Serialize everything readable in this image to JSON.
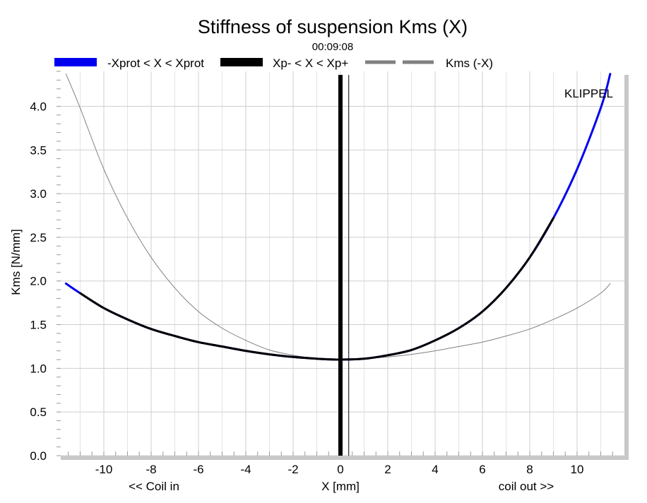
{
  "chart_data": {
    "type": "line",
    "title": "Stiffness of suspension Kms (X)",
    "subtitle": "00:09:08",
    "brand": "KLIPPEL",
    "xlabel": "X [mm]",
    "xlabel_left": "<< Coil in",
    "xlabel_right": "coil out >>",
    "ylabel": "Kms [N/mm]",
    "xlim": [
      -12,
      12
    ],
    "ylim": [
      0,
      4.4
    ],
    "xticks": [
      "-10",
      "-8",
      "-6",
      "-4",
      "-2",
      "0",
      "2",
      "4",
      "6",
      "8",
      "10"
    ],
    "xtick_values": [
      -10,
      -8,
      -6,
      -4,
      -2,
      0,
      2,
      4,
      6,
      8,
      10
    ],
    "yticks": [
      "0.0",
      "0.5",
      "1.0",
      "1.5",
      "2.0",
      "2.5",
      "3.0",
      "3.5",
      "4.0"
    ],
    "ytick_values": [
      0,
      0.5,
      1.0,
      1.5,
      2.0,
      2.5,
      3.0,
      3.5,
      4.0
    ],
    "grid": true,
    "legend_position": "top",
    "vertical_markers": [
      {
        "x": 0,
        "color": "#000000",
        "role": "thick"
      },
      {
        "x": 0.35,
        "color": "#000000",
        "role": "thin"
      }
    ],
    "series": [
      {
        "name": "-Xprot < X < Xprot",
        "color": "#0000ee",
        "x": [
          -11.6,
          -11,
          -10,
          -9,
          -8,
          -7,
          -6,
          -5,
          -4,
          -3,
          -2,
          -1,
          0,
          1,
          2,
          3,
          4,
          5,
          6,
          7,
          8,
          9,
          10,
          11,
          11.4
        ],
        "y": [
          1.97,
          1.86,
          1.69,
          1.56,
          1.45,
          1.37,
          1.3,
          1.25,
          1.2,
          1.16,
          1.13,
          1.11,
          1.1,
          1.11,
          1.15,
          1.21,
          1.32,
          1.46,
          1.65,
          1.92,
          2.27,
          2.72,
          3.28,
          3.98,
          4.37
        ]
      },
      {
        "name": "Xp- < X < Xp+",
        "color": "#000000",
        "x": [
          -11,
          -10,
          -9,
          -8,
          -7,
          -6,
          -5,
          -4,
          -3,
          -2,
          -1,
          0,
          1,
          2,
          3,
          4,
          5,
          6,
          7,
          8,
          9
        ],
        "y": [
          1.86,
          1.69,
          1.56,
          1.45,
          1.37,
          1.3,
          1.25,
          1.2,
          1.16,
          1.13,
          1.11,
          1.1,
          1.11,
          1.15,
          1.21,
          1.32,
          1.46,
          1.65,
          1.92,
          2.27,
          2.72
        ]
      },
      {
        "name": "Kms (-X)",
        "color": "#808080",
        "x": [
          -11.6,
          -11,
          -10,
          -9,
          -8,
          -7,
          -6,
          -5,
          -4,
          -3,
          -2,
          -1,
          0,
          1,
          2,
          3,
          4,
          5,
          6,
          7,
          8,
          9,
          10,
          11,
          11.4
        ],
        "y": [
          4.37,
          3.98,
          3.28,
          2.72,
          2.27,
          1.92,
          1.65,
          1.46,
          1.32,
          1.21,
          1.15,
          1.11,
          1.1,
          1.11,
          1.13,
          1.16,
          1.2,
          1.25,
          1.3,
          1.37,
          1.45,
          1.56,
          1.69,
          1.86,
          1.97
        ]
      }
    ]
  }
}
